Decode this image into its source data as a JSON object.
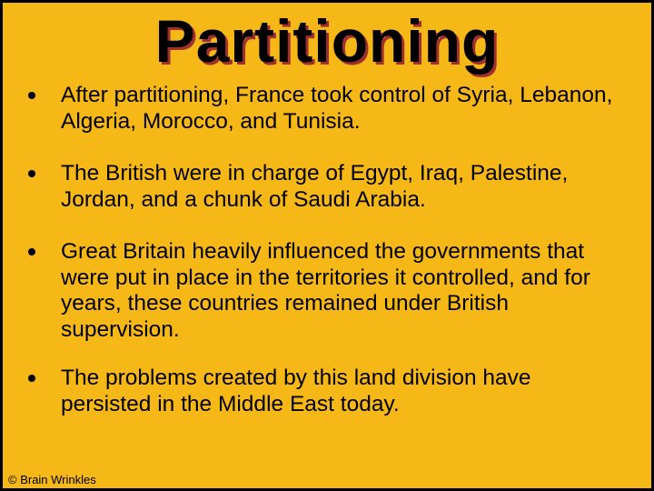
{
  "slide": {
    "background_color": "#f5b816",
    "border_color": "#000000",
    "title": {
      "text": "Partitioning",
      "font_size": 66,
      "font_weight": "bold",
      "color": "#000000",
      "shadow_color": "#a03030"
    },
    "bullets": [
      "After partitioning, France took control of Syria, Lebanon, Algeria, Morocco, and Tunisia.",
      "The British were in charge of Egypt, Iraq, Palestine, Jordan, and a chunk of Saudi Arabia.",
      "Great Britain heavily influenced the governments that were put in place in the territories it controlled, and for years, these countries remained under British supervision.",
      "The problems created by this land division have persisted in the Middle East today."
    ],
    "bullet_color": "#000000",
    "bullet_font_size": 24.5,
    "footer": "© Brain Wrinkles"
  }
}
